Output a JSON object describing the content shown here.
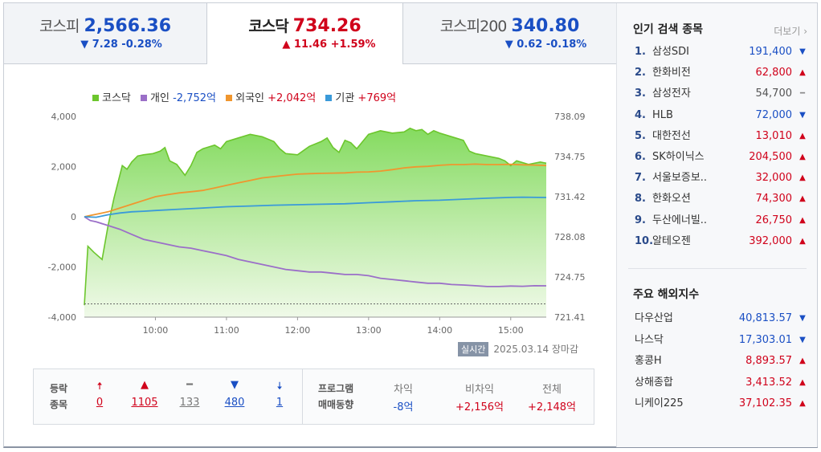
{
  "tabs": [
    {
      "name": "코스피",
      "value": "2,566.36",
      "change": "▼ 7.28 -0.28%",
      "dir": "down",
      "active": false
    },
    {
      "name": "코스닥",
      "value": "734.26",
      "change": "▲ 11.46 +1.59%",
      "dir": "up",
      "active": true
    },
    {
      "name": "코스피200",
      "value": "340.80",
      "change": "▼ 0.62 -0.18%",
      "dir": "down",
      "active": false
    }
  ],
  "legend": [
    {
      "label": "코스닥",
      "value": "",
      "color": "#6cc62d",
      "vcolor": ""
    },
    {
      "label": "개인",
      "value": "-2,752억",
      "color": "#9b6fc8",
      "vcolor": "#1a4fc4"
    },
    {
      "label": "외국인",
      "value": "+2,042억",
      "color": "#f0962e",
      "vcolor": "#d0021b"
    },
    {
      "label": "기관",
      "value": "+769억",
      "color": "#3a9ad9",
      "vcolor": "#d0021b"
    }
  ],
  "chart_data": {
    "type": "line",
    "x_labels": [
      "10:00",
      "11:00",
      "12:00",
      "13:00",
      "14:00",
      "15:00"
    ],
    "y_left_ticks": [
      "4,000",
      "2,000",
      "0",
      "-2,000",
      "-4,000"
    ],
    "y_right_ticks": [
      "738.09",
      "734.75",
      "731.42",
      "728.08",
      "724.75",
      "721.41"
    ],
    "y_left_range": [
      -4000,
      4000
    ],
    "y_right_range": [
      721.41,
      738.09
    ],
    "x_range_minutes": [
      540,
      930
    ],
    "baseline_right": 722.51,
    "series": [
      {
        "name": "코스닥",
        "axis": "right",
        "color": "#6cc62d",
        "fill": true,
        "points": [
          [
            540,
            722.4
          ],
          [
            543,
            727.3
          ],
          [
            548,
            726.8
          ],
          [
            555,
            726.2
          ],
          [
            560,
            729.0
          ],
          [
            565,
            731.3
          ],
          [
            572,
            734.0
          ],
          [
            576,
            733.7
          ],
          [
            580,
            734.3
          ],
          [
            585,
            734.8
          ],
          [
            590,
            734.9
          ],
          [
            598,
            735.0
          ],
          [
            604,
            735.2
          ],
          [
            608,
            735.5
          ],
          [
            612,
            734.4
          ],
          [
            618,
            734.1
          ],
          [
            625,
            733.2
          ],
          [
            630,
            734.0
          ],
          [
            635,
            735.1
          ],
          [
            640,
            735.4
          ],
          [
            650,
            735.7
          ],
          [
            655,
            735.4
          ],
          [
            660,
            736.0
          ],
          [
            670,
            736.3
          ],
          [
            680,
            736.6
          ],
          [
            690,
            736.4
          ],
          [
            700,
            736.0
          ],
          [
            705,
            735.4
          ],
          [
            710,
            735.0
          ],
          [
            720,
            734.9
          ],
          [
            730,
            735.6
          ],
          [
            740,
            736.0
          ],
          [
            745,
            736.3
          ],
          [
            750,
            735.5
          ],
          [
            755,
            735.1
          ],
          [
            760,
            736.1
          ],
          [
            765,
            735.9
          ],
          [
            770,
            735.4
          ],
          [
            780,
            736.6
          ],
          [
            790,
            736.9
          ],
          [
            800,
            736.7
          ],
          [
            810,
            736.8
          ],
          [
            815,
            737.1
          ],
          [
            820,
            736.9
          ],
          [
            825,
            737.0
          ],
          [
            830,
            736.6
          ],
          [
            835,
            736.9
          ],
          [
            840,
            736.7
          ],
          [
            850,
            736.4
          ],
          [
            860,
            736.1
          ],
          [
            865,
            735.2
          ],
          [
            870,
            735.0
          ],
          [
            880,
            734.8
          ],
          [
            890,
            734.6
          ],
          [
            895,
            734.4
          ],
          [
            900,
            734.0
          ],
          [
            905,
            734.4
          ],
          [
            915,
            734.1
          ],
          [
            925,
            734.3
          ],
          [
            930,
            734.2
          ]
        ]
      },
      {
        "name": "개인",
        "axis": "left",
        "color": "#9b6fc8",
        "fill": false,
        "points": [
          [
            540,
            0
          ],
          [
            545,
            -150
          ],
          [
            550,
            -200
          ],
          [
            560,
            -350
          ],
          [
            570,
            -500
          ],
          [
            580,
            -700
          ],
          [
            590,
            -900
          ],
          [
            600,
            -1000
          ],
          [
            610,
            -1100
          ],
          [
            620,
            -1200
          ],
          [
            630,
            -1250
          ],
          [
            640,
            -1350
          ],
          [
            650,
            -1450
          ],
          [
            660,
            -1550
          ],
          [
            670,
            -1700
          ],
          [
            680,
            -1800
          ],
          [
            690,
            -1900
          ],
          [
            700,
            -2000
          ],
          [
            710,
            -2100
          ],
          [
            720,
            -2150
          ],
          [
            730,
            -2200
          ],
          [
            740,
            -2200
          ],
          [
            750,
            -2250
          ],
          [
            760,
            -2300
          ],
          [
            770,
            -2300
          ],
          [
            780,
            -2350
          ],
          [
            790,
            -2450
          ],
          [
            800,
            -2500
          ],
          [
            810,
            -2550
          ],
          [
            820,
            -2600
          ],
          [
            830,
            -2650
          ],
          [
            840,
            -2650
          ],
          [
            850,
            -2700
          ],
          [
            860,
            -2720
          ],
          [
            870,
            -2750
          ],
          [
            880,
            -2780
          ],
          [
            890,
            -2780
          ],
          [
            900,
            -2760
          ],
          [
            910,
            -2770
          ],
          [
            920,
            -2750
          ],
          [
            930,
            -2752
          ]
        ]
      },
      {
        "name": "외국인",
        "axis": "left",
        "color": "#f0962e",
        "fill": false,
        "points": [
          [
            540,
            0
          ],
          [
            545,
            50
          ],
          [
            550,
            100
          ],
          [
            560,
            200
          ],
          [
            570,
            350
          ],
          [
            580,
            500
          ],
          [
            590,
            650
          ],
          [
            600,
            800
          ],
          [
            610,
            880
          ],
          [
            620,
            950
          ],
          [
            630,
            1000
          ],
          [
            640,
            1050
          ],
          [
            650,
            1150
          ],
          [
            660,
            1250
          ],
          [
            670,
            1350
          ],
          [
            680,
            1450
          ],
          [
            690,
            1550
          ],
          [
            700,
            1600
          ],
          [
            710,
            1650
          ],
          [
            720,
            1700
          ],
          [
            730,
            1720
          ],
          [
            740,
            1730
          ],
          [
            750,
            1740
          ],
          [
            760,
            1750
          ],
          [
            770,
            1780
          ],
          [
            780,
            1790
          ],
          [
            790,
            1820
          ],
          [
            800,
            1880
          ],
          [
            810,
            1950
          ],
          [
            820,
            1990
          ],
          [
            830,
            2010
          ],
          [
            840,
            2050
          ],
          [
            850,
            2080
          ],
          [
            860,
            2080
          ],
          [
            870,
            2100
          ],
          [
            880,
            2080
          ],
          [
            890,
            2080
          ],
          [
            900,
            2090
          ],
          [
            910,
            2070
          ],
          [
            920,
            2060
          ],
          [
            930,
            2042
          ]
        ]
      },
      {
        "name": "기관",
        "axis": "left",
        "color": "#3a9ad9",
        "fill": false,
        "points": [
          [
            540,
            0
          ],
          [
            550,
            -20
          ],
          [
            560,
            80
          ],
          [
            570,
            150
          ],
          [
            580,
            200
          ],
          [
            590,
            220
          ],
          [
            600,
            250
          ],
          [
            620,
            300
          ],
          [
            640,
            350
          ],
          [
            660,
            400
          ],
          [
            680,
            430
          ],
          [
            700,
            460
          ],
          [
            720,
            480
          ],
          [
            740,
            500
          ],
          [
            760,
            520
          ],
          [
            780,
            560
          ],
          [
            800,
            600
          ],
          [
            820,
            640
          ],
          [
            840,
            660
          ],
          [
            860,
            700
          ],
          [
            880,
            740
          ],
          [
            900,
            770
          ],
          [
            910,
            780
          ],
          [
            930,
            769
          ]
        ]
      }
    ]
  },
  "status": {
    "badge": "실시간",
    "text": "2025.03.14 장마감"
  },
  "breadth": {
    "label1": "등락",
    "label2": "종목",
    "items": [
      {
        "icon": "🠅",
        "count": "0",
        "color": "#d0021b",
        "name": "upper-limit"
      },
      {
        "icon": "▲",
        "count": "1105",
        "color": "#d0021b",
        "name": "rise"
      },
      {
        "icon": "━",
        "count": "133",
        "color": "#777777",
        "name": "flat"
      },
      {
        "icon": "▼",
        "count": "480",
        "color": "#1a4fc4",
        "name": "fall"
      },
      {
        "icon": "🠇",
        "count": "1",
        "color": "#1a4fc4",
        "name": "lower-limit"
      }
    ]
  },
  "program": {
    "label1": "프로그램",
    "label2": "매매동향",
    "cols": [
      {
        "head": "차익",
        "value": "-8억",
        "color": "#1a4fc4"
      },
      {
        "head": "비차익",
        "value": "+2,156억",
        "color": "#d0021b"
      },
      {
        "head": "전체",
        "value": "+2,148억",
        "color": "#d0021b"
      }
    ]
  },
  "popular": {
    "title": "인기 검색 종목",
    "more": "더보기",
    "items": [
      {
        "rank": "1.",
        "name": "삼성SDI",
        "price": "191,400",
        "dir": "down"
      },
      {
        "rank": "2.",
        "name": "한화비전",
        "price": "62,800",
        "dir": "up"
      },
      {
        "rank": "3.",
        "name": "삼성전자",
        "price": "54,700",
        "dir": "flat"
      },
      {
        "rank": "4.",
        "name": "HLB",
        "price": "72,000",
        "dir": "down"
      },
      {
        "rank": "5.",
        "name": "대한전선",
        "price": "13,010",
        "dir": "up"
      },
      {
        "rank": "6.",
        "name": "SK하이닉스",
        "price": "204,500",
        "dir": "up"
      },
      {
        "rank": "7.",
        "name": "서울보증보..",
        "price": "32,000",
        "dir": "up"
      },
      {
        "rank": "8.",
        "name": "한화오션",
        "price": "74,300",
        "dir": "up"
      },
      {
        "rank": "9.",
        "name": "두산에너빌..",
        "price": "26,750",
        "dir": "up"
      },
      {
        "rank": "10.",
        "name": "알테오젠",
        "price": "392,000",
        "dir": "up"
      }
    ]
  },
  "overseas": {
    "title": "주요 해외지수",
    "items": [
      {
        "name": "다우산업",
        "price": "40,813.57",
        "dir": "down"
      },
      {
        "name": "나스닥",
        "price": "17,303.01",
        "dir": "down"
      },
      {
        "name": "홍콩H",
        "price": "8,893.57",
        "dir": "up"
      },
      {
        "name": "상해종합",
        "price": "3,413.52",
        "dir": "up"
      },
      {
        "name": "니케이225",
        "price": "37,102.35",
        "dir": "up"
      }
    ]
  }
}
